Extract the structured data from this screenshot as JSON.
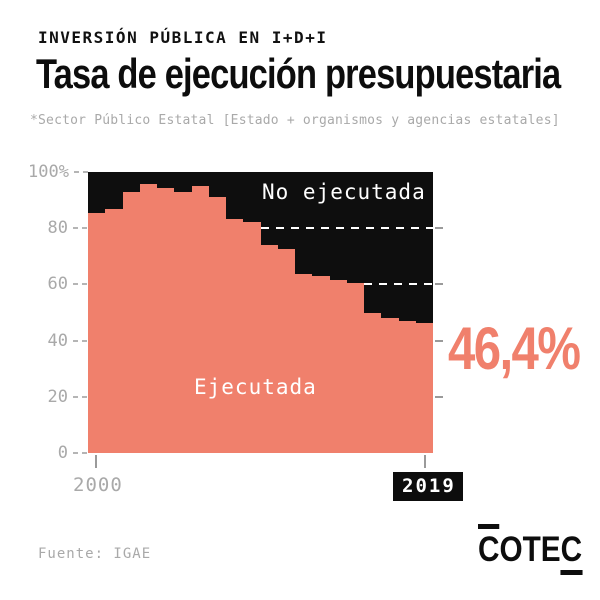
{
  "header": {
    "eyebrow": "INVERSIÓN PÚBLICA EN I+D+I",
    "title": "Tasa de ejecución presupuestaria",
    "subtitle": "*Sector Público Estatal [Estado + organismos y agencias estatales]"
  },
  "colors": {
    "executed_salmon": "#F0806C",
    "not_executed_black": "#0E0E0E",
    "axis_gray": "#A9A9A9",
    "background": "#FFFFFF"
  },
  "chart_data": {
    "type": "bar",
    "stacked": true,
    "title": "Tasa de ejecución presupuestaria",
    "xlabel": "",
    "ylabel": "",
    "ylim": [
      0,
      100
    ],
    "grid": "dashed white lines at 80 and 60 over the not-executed area",
    "categories": [
      2000,
      2001,
      2002,
      2003,
      2004,
      2005,
      2006,
      2007,
      2008,
      2009,
      2010,
      2011,
      2012,
      2013,
      2014,
      2015,
      2016,
      2017,
      2018,
      2019
    ],
    "series": [
      {
        "name": "Ejecutada",
        "color": "#F0806C",
        "values": [
          85.4,
          86.8,
          92.8,
          95.7,
          94.3,
          92.8,
          95.1,
          91.0,
          83.4,
          82.1,
          74.1,
          72.6,
          63.7,
          63.0,
          61.5,
          60.4,
          50.0,
          48.2,
          46.9,
          46.4
        ]
      },
      {
        "name": "No ejecutada",
        "color": "#0E0E0E",
        "values": [
          14.6,
          13.2,
          7.2,
          4.3,
          5.7,
          7.2,
          4.9,
          9.0,
          16.6,
          17.9,
          25.9,
          27.4,
          36.3,
          37.0,
          38.5,
          39.6,
          50.0,
          51.8,
          53.1,
          53.6
        ]
      }
    ],
    "yticks": [
      {
        "label": "100%",
        "value": 100
      },
      {
        "label": "80",
        "value": 80
      },
      {
        "label": "60",
        "value": 60
      },
      {
        "label": "40",
        "value": 40
      },
      {
        "label": "20",
        "value": 20
      },
      {
        "label": "0",
        "value": 0
      }
    ],
    "xticks": [
      {
        "label": "2000",
        "index": 0
      },
      {
        "label": "2019",
        "index": 19
      }
    ],
    "gridlines_dashed": [
      80,
      60
    ],
    "right_ticks": [
      80,
      60,
      40,
      20
    ],
    "area_labels": {
      "not_executed": "No ejecutada",
      "executed": "Ejecutada"
    },
    "annotation": {
      "text": "46,4%",
      "value": 46.4,
      "year": 2019
    }
  },
  "footer": {
    "source": "Fuente: IGAE",
    "logo": "COTEC"
  }
}
